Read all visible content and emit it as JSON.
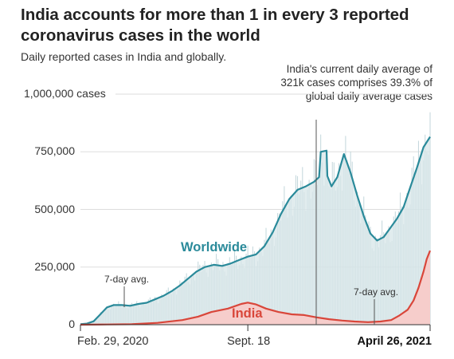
{
  "title": "India accounts for more than 1 in every 3 reported coronavirus cases in the world",
  "subtitle": "Daily reported cases in India and globally.",
  "annotation_current": "India's current daily average of 321k cases comprises 39.3% of global daily average cases",
  "annotation_avg_left": "7-day avg.",
  "annotation_avg_right": "7-day avg.",
  "colors": {
    "worldwide": "#2a8a9a",
    "worldwide_fill": "#d7e5e8",
    "worldwide_bars": "#c2d6db",
    "india": "#d9463a",
    "india_fill": "#f6cdcb"
  },
  "chart_data": {
    "type": "area",
    "title": "India accounts for more than 1 in every 3 reported coronavirus cases in the world",
    "subtitle": "Daily reported cases in India and globally.",
    "x_axis": {
      "start": "2020-02-29",
      "end": "2021-04-26",
      "tick_labels": [
        {
          "date": "2020-02-29",
          "label": "Feb. 29, 2020"
        },
        {
          "date": "2020-09-18",
          "label": "Sept. 18"
        },
        {
          "date": "2021-04-26",
          "label": "April 26, 2021"
        }
      ]
    },
    "y_axis": {
      "ylim": [
        0,
        1000000
      ],
      "ticks": [
        {
          "value": 0,
          "label": "0"
        },
        {
          "value": 250000,
          "label": "250,000"
        },
        {
          "value": 500000,
          "label": "500,000"
        },
        {
          "value": 750000,
          "label": "750,000"
        },
        {
          "value": 1000000,
          "label": "1,000,000 cases"
        }
      ]
    },
    "grid": true,
    "series": [
      {
        "name": "Worldwide",
        "points": [
          [
            "2020-02-29",
            2000
          ],
          [
            "2020-03-08",
            5000
          ],
          [
            "2020-03-16",
            15000
          ],
          [
            "2020-03-24",
            45000
          ],
          [
            "2020-04-01",
            75000
          ],
          [
            "2020-04-09",
            85000
          ],
          [
            "2020-04-19",
            85000
          ],
          [
            "2020-04-29",
            82000
          ],
          [
            "2020-05-09",
            90000
          ],
          [
            "2020-05-19",
            95000
          ],
          [
            "2020-05-29",
            110000
          ],
          [
            "2020-06-08",
            125000
          ],
          [
            "2020-06-18",
            145000
          ],
          [
            "2020-06-28",
            170000
          ],
          [
            "2020-07-08",
            200000
          ],
          [
            "2020-07-18",
            230000
          ],
          [
            "2020-07-28",
            250000
          ],
          [
            "2020-08-08",
            260000
          ],
          [
            "2020-08-18",
            255000
          ],
          [
            "2020-08-28",
            265000
          ],
          [
            "2020-09-07",
            280000
          ],
          [
            "2020-09-18",
            295000
          ],
          [
            "2020-09-28",
            305000
          ],
          [
            "2020-10-08",
            340000
          ],
          [
            "2020-10-18",
            400000
          ],
          [
            "2020-10-28",
            480000
          ],
          [
            "2020-11-07",
            545000
          ],
          [
            "2020-11-17",
            585000
          ],
          [
            "2020-11-27",
            600000
          ],
          [
            "2020-12-07",
            620000
          ],
          [
            "2020-12-13",
            640000
          ],
          [
            "2020-12-15",
            750000
          ],
          [
            "2020-12-22",
            755000
          ],
          [
            "2020-12-23",
            645000
          ],
          [
            "2020-12-28",
            600000
          ],
          [
            "2021-01-04",
            640000
          ],
          [
            "2021-01-12",
            740000
          ],
          [
            "2021-01-20",
            660000
          ],
          [
            "2021-01-28",
            560000
          ],
          [
            "2021-02-05",
            470000
          ],
          [
            "2021-02-13",
            395000
          ],
          [
            "2021-02-21",
            365000
          ],
          [
            "2021-03-01",
            380000
          ],
          [
            "2021-03-09",
            420000
          ],
          [
            "2021-03-17",
            460000
          ],
          [
            "2021-03-25",
            510000
          ],
          [
            "2021-04-02",
            595000
          ],
          [
            "2021-04-10",
            680000
          ],
          [
            "2021-04-18",
            770000
          ],
          [
            "2021-04-26",
            815000
          ]
        ]
      },
      {
        "name": "India",
        "points": [
          [
            "2020-02-29",
            0
          ],
          [
            "2020-04-01",
            1000
          ],
          [
            "2020-05-01",
            2000
          ],
          [
            "2020-06-01",
            8000
          ],
          [
            "2020-07-01",
            20000
          ],
          [
            "2020-07-20",
            35000
          ],
          [
            "2020-08-05",
            55000
          ],
          [
            "2020-08-25",
            70000
          ],
          [
            "2020-09-10",
            90000
          ],
          [
            "2020-09-18",
            96000
          ],
          [
            "2020-09-28",
            88000
          ],
          [
            "2020-10-10",
            70000
          ],
          [
            "2020-10-25",
            55000
          ],
          [
            "2020-11-10",
            45000
          ],
          [
            "2020-11-25",
            42000
          ],
          [
            "2020-12-10",
            32000
          ],
          [
            "2020-12-25",
            24000
          ],
          [
            "2021-01-10",
            18000
          ],
          [
            "2021-01-25",
            14000
          ],
          [
            "2021-02-10",
            11000
          ],
          [
            "2021-02-25",
            14000
          ],
          [
            "2021-03-10",
            20000
          ],
          [
            "2021-03-20",
            40000
          ],
          [
            "2021-03-30",
            65000
          ],
          [
            "2021-04-06",
            105000
          ],
          [
            "2021-04-12",
            160000
          ],
          [
            "2021-04-18",
            230000
          ],
          [
            "2021-04-22",
            285000
          ],
          [
            "2021-04-26",
            321000
          ]
        ]
      }
    ],
    "annotations": [
      "7-day avg.",
      "India's current daily average of 321k cases comprises 39.3% of global daily average cases"
    ]
  }
}
